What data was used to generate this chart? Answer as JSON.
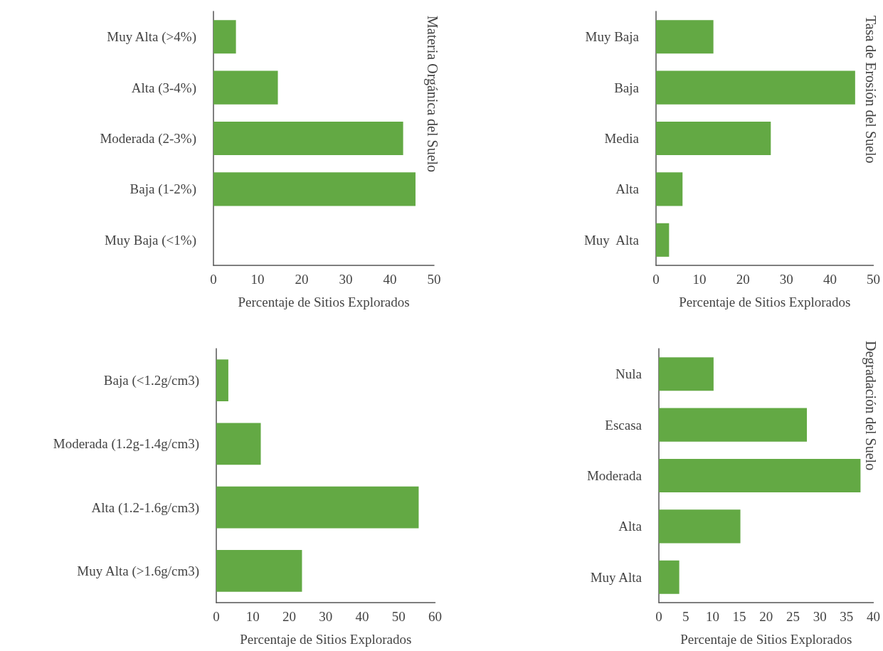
{
  "chart_data": [
    {
      "type": "bar",
      "orientation": "horizontal",
      "title": "Materia Orgánica del Suelo",
      "xlabel": "Percentaje de Sitios Explorados",
      "categories": [
        "Muy Alta (>4%)",
        "Alta (3-4%)",
        "Moderada (2-3%)",
        "Baja (1-2%)",
        "Muy Baja (<1%)"
      ],
      "values": [
        5.1,
        14.6,
        43,
        45.8,
        0
      ],
      "color": "#63a944",
      "xlim": [
        0,
        50
      ],
      "xticks": [
        0,
        10,
        20,
        30,
        40,
        50
      ]
    },
    {
      "type": "bar",
      "orientation": "horizontal",
      "title": "Tasa de Erosión del Suelo",
      "xlabel": "Percentaje de Sitios Explorados",
      "categories": [
        "Muy Baja",
        "Baja",
        "Media",
        "Alta",
        "Muy  Alta"
      ],
      "values": [
        13.2,
        45.8,
        26.4,
        6.1,
        3
      ],
      "color": "#63a944",
      "xlim": [
        0,
        50
      ],
      "xticks": [
        0,
        10,
        20,
        30,
        40,
        50
      ]
    },
    {
      "type": "bar",
      "orientation": "horizontal",
      "xlabel": "Percentaje de Sitios Explorados",
      "categories": [
        "Baja (<1.2g/cm3)",
        "Moderada (1.2g-1.4g/cm3)",
        "Alta (1.2-1.6g/cm3)",
        "Muy Alta (>1.6g/cm3)"
      ],
      "values": [
        3.3,
        12.2,
        55.5,
        23.5
      ],
      "color": "#63a944",
      "xlim": [
        0,
        60
      ],
      "xticks": [
        0,
        10,
        20,
        30,
        40,
        50,
        60
      ]
    },
    {
      "type": "bar",
      "orientation": "horizontal",
      "title": "Degradación del Suelo",
      "xlabel": "Percentaje de Sitios Explorados",
      "categories": [
        "Nula",
        "Escasa",
        "Moderada",
        "Alta",
        "Muy Alta"
      ],
      "values": [
        10.2,
        27.6,
        37.6,
        15.2,
        3.8
      ],
      "color": "#63a944",
      "xlim": [
        0,
        40
      ],
      "xticks": [
        0,
        5,
        10,
        15,
        20,
        25,
        30,
        35,
        40
      ]
    }
  ]
}
